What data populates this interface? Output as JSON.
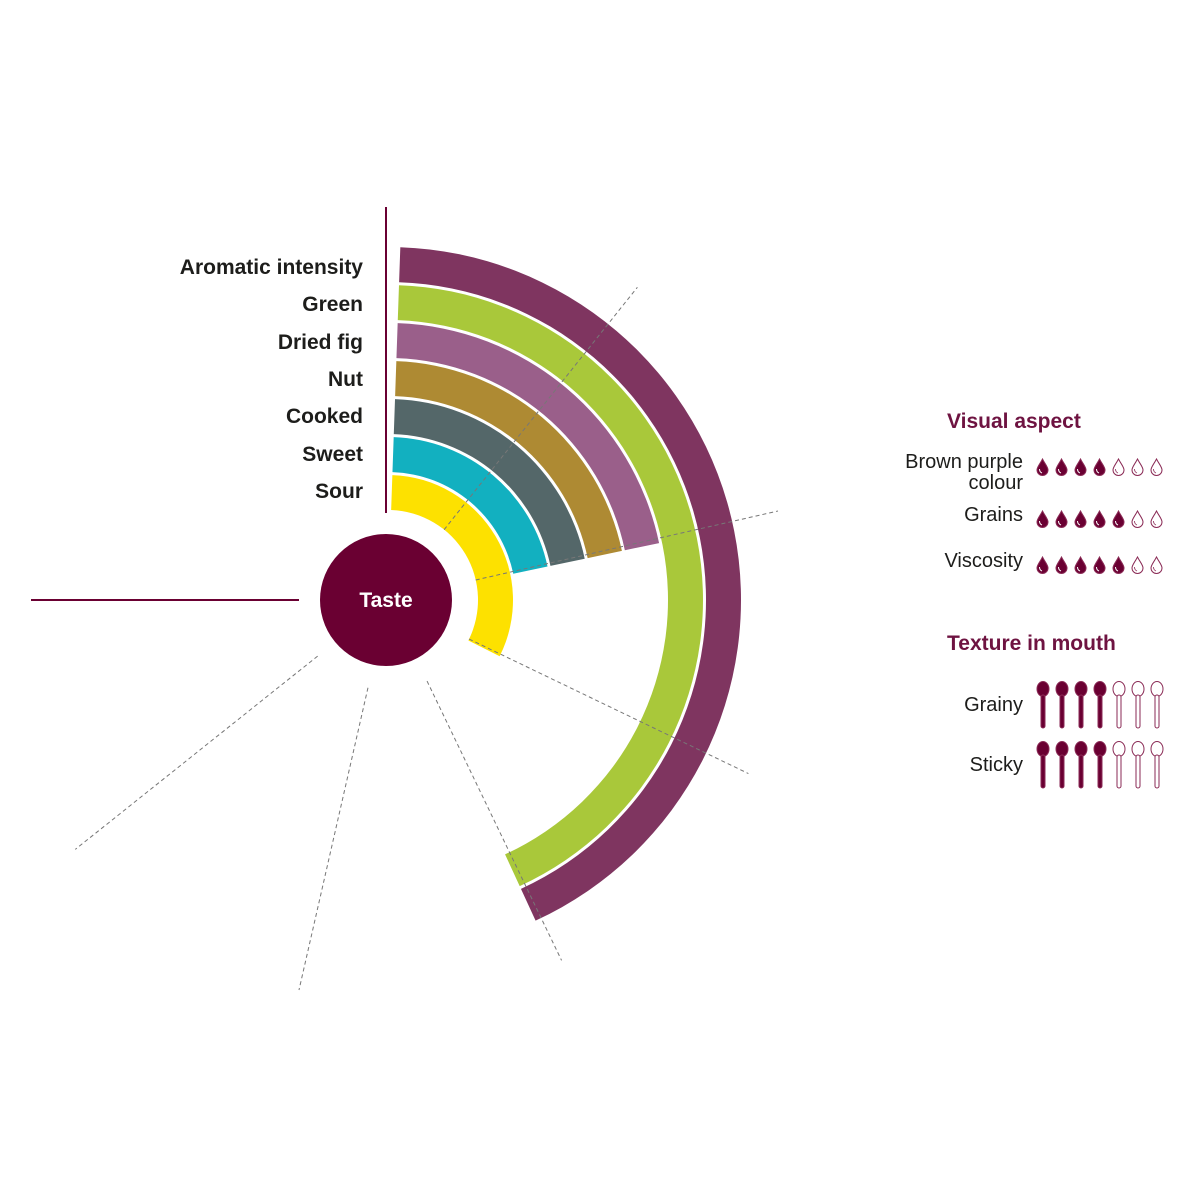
{
  "chart_data": {
    "type": "radial-bar",
    "center_label": "Taste",
    "scale_max": 7,
    "categories": [
      "Aromatic intensity",
      "Green",
      "Dried fig",
      "Nut",
      "Cooked",
      "Sweet",
      "Sour"
    ],
    "values": [
      4,
      4,
      2,
      2,
      2,
      2,
      3
    ],
    "colors": [
      "#7f3560",
      "#a9c83a",
      "#9a5f8a",
      "#ae8a33",
      "#546769",
      "#12b0c0",
      "#fde100"
    ]
  },
  "visual_aspect": {
    "title": "Visual aspect",
    "max": 7,
    "items": [
      {
        "label": "Brown purple colour",
        "value": 4
      },
      {
        "label": "Grains",
        "value": 5
      },
      {
        "label": "Viscosity",
        "value": 5
      }
    ]
  },
  "texture": {
    "title": "Texture in mouth",
    "max": 7,
    "items": [
      {
        "label": "Grainy",
        "value": 4
      },
      {
        "label": "Sticky",
        "value": 4
      }
    ]
  },
  "colors": {
    "accent": "#6e1341",
    "center": "#6a0032"
  }
}
